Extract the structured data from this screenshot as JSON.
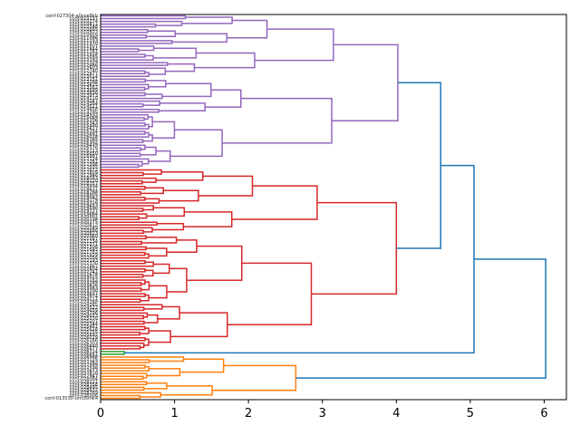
{
  "chart_data": {
    "type": "dendrogram",
    "orientation": "left",
    "title": "",
    "xlabel": "",
    "ylabel": "",
    "xlim": [
      0,
      6.3
    ],
    "xticks": [
      "0",
      "1",
      "2",
      "3",
      "4",
      "5",
      "6"
    ],
    "colors": {
      "purple": "#9467bd",
      "red": "#d62728",
      "green": "#2ca02c",
      "orange": "#ff7f0e",
      "above_threshold": "#1f77b4"
    },
    "leaf_label_first": "conf-027304-a0yve8kb",
    "leaf_label_last": "conf-013530-umu5mk4",
    "clusters": [
      {
        "name": "purple",
        "leaf_count": 56,
        "root_height": 4.02
      },
      {
        "name": "red",
        "leaf_count": 66,
        "root_height": 4.0
      },
      {
        "name": "green",
        "leaf_count": 2,
        "root_height": 0.32
      },
      {
        "name": "orange",
        "leaf_count": 16,
        "root_height": 2.64
      }
    ],
    "top_merges": [
      {
        "left": "purple",
        "right": "red",
        "height": 4.6
      },
      {
        "left": "purple+red",
        "right": "green",
        "height": 5.05
      },
      {
        "left": "purple+red+green",
        "right": "orange",
        "height": 6.02
      }
    ]
  }
}
